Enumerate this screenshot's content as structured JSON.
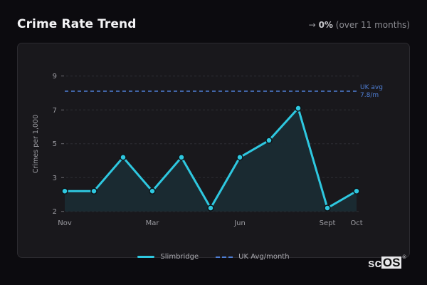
{
  "header": {
    "title": "Crime Rate Trend",
    "trend_arrow": "→",
    "trend_pct": "0%",
    "trend_note": "(over 11 months)"
  },
  "colors": {
    "series": "#2ec8e0",
    "avg_line": "#4f7fd6",
    "fill": "#1a2b33",
    "background": "#0c0b0f",
    "card": "#19181c"
  },
  "chart_data": {
    "type": "line",
    "title": "Crime Rate Trend",
    "xlabel": "",
    "ylabel": "Crimes per 1,000",
    "y_ticks": [
      "2",
      "3",
      "5",
      "7",
      "9"
    ],
    "x_tick_labels": [
      {
        "index": 0,
        "label": "Nov"
      },
      {
        "index": 3,
        "label": "Mar"
      },
      {
        "index": 6,
        "label": "Jun"
      },
      {
        "index": 9,
        "label": "Sept"
      },
      {
        "index": 10,
        "label": "Oct"
      }
    ],
    "grid": "horizontal dashed",
    "legend_position": "bottom",
    "series": [
      {
        "name": "Slimbridge",
        "style": "solid line with markers and area fill",
        "values": [
          2.6,
          2.6,
          4.2,
          2.6,
          4.2,
          2.1,
          4.2,
          5.2,
          7.1,
          2.1,
          2.6
        ]
      },
      {
        "name": "UK Avg/month",
        "style": "dashed",
        "value": 7.8
      }
    ],
    "annotation": {
      "line1": "UK avg",
      "line2": "7.8/m"
    }
  },
  "legend": {
    "series_label": "Slimbridge",
    "avg_label": "UK Avg/month"
  },
  "branding": {
    "logo_sc": "sc",
    "logo_os": "OS",
    "logo_reg": "®"
  }
}
